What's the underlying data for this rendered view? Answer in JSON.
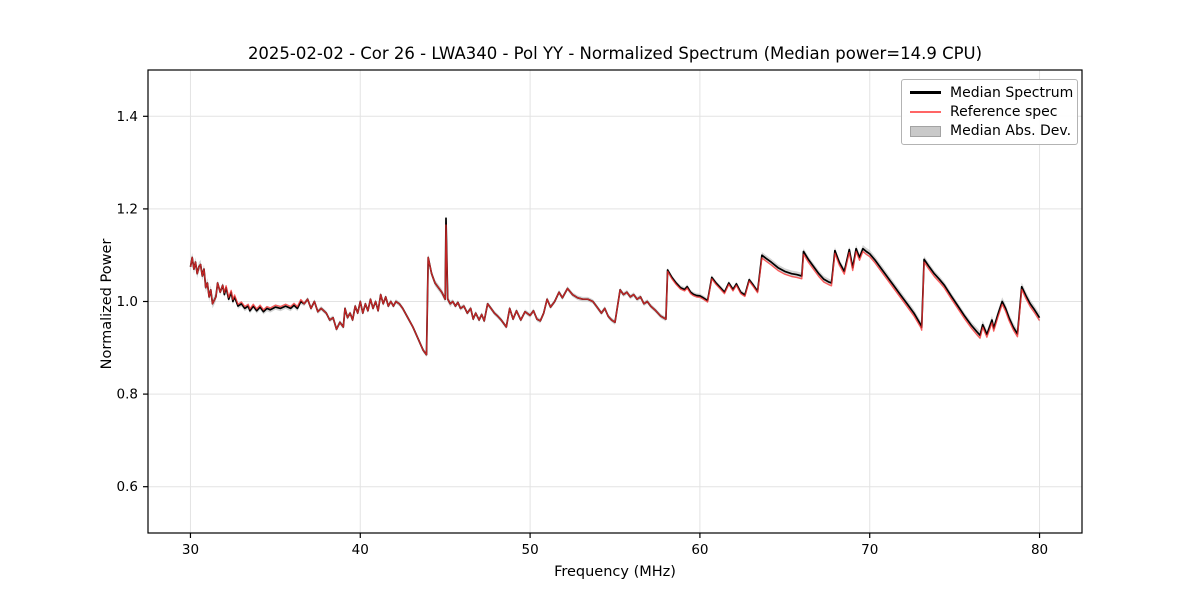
{
  "chart_data": {
    "type": "line",
    "title": "2025-02-02 - Cor 26 - LWA340 - Pol YY - Normalized Spectrum (Median power=14.9 CPU)",
    "xlabel": "Frequency (MHz)",
    "ylabel": "Normalized Power",
    "xlim": [
      27.5,
      82.5
    ],
    "ylim": [
      0.5,
      1.5
    ],
    "xticks": [
      30,
      40,
      50,
      60,
      70,
      80
    ],
    "yticks": [
      0.6,
      0.8,
      1.0,
      1.2,
      1.4
    ],
    "grid": true,
    "legend_position": "upper right",
    "colors": {
      "grid": "#e3e3e3",
      "spine": "#000000",
      "median": "#000000",
      "reference": "#ff3232",
      "band": "#b0b0b0"
    },
    "legend": [
      {
        "label": "Median Spectrum",
        "swatch": "line",
        "color": "#000000",
        "opacity": 1
      },
      {
        "label": "Reference spec",
        "swatch": "line",
        "color": "#ff3232",
        "opacity": 0.75
      },
      {
        "label": "Median Abs. Dev.",
        "swatch": "patch",
        "color": "#c9c9c9",
        "opacity": 1
      }
    ],
    "series_names": {
      "median": "Median Spectrum",
      "reference": "Reference spec",
      "band": "Median Abs. Dev."
    },
    "points_format": [
      "frequency_mhz",
      "median_spectrum",
      "reference_spec"
    ],
    "points": [
      [
        30,
        1.075,
        1.075
      ],
      [
        30.1,
        1.095,
        1.095
      ],
      [
        30.2,
        1.07,
        1.07
      ],
      [
        30.3,
        1.085,
        1.085
      ],
      [
        30.4,
        1.06,
        1.06
      ],
      [
        30.5,
        1.075,
        1.075
      ],
      [
        30.6,
        1.08,
        1.08
      ],
      [
        30.7,
        1.055,
        1.055
      ],
      [
        30.8,
        1.07,
        1.07
      ],
      [
        30.9,
        1.03,
        1.03
      ],
      [
        31,
        1.04,
        1.04
      ],
      [
        31.1,
        1.01,
        1.01
      ],
      [
        31.2,
        1.025,
        1.025
      ],
      [
        31.3,
        0.995,
        0.995
      ],
      [
        31.5,
        1.01,
        1.01
      ],
      [
        31.6,
        1.04,
        1.04
      ],
      [
        31.75,
        1.02,
        1.02
      ],
      [
        31.9,
        1.035,
        1.035
      ],
      [
        32,
        1.015,
        1.019
      ],
      [
        32.1,
        1.03,
        1.034
      ],
      [
        32.25,
        1.005,
        1.009
      ],
      [
        32.4,
        1.02,
        1.024
      ],
      [
        32.5,
        1,
        1.004
      ],
      [
        32.6,
        1.01,
        1.014
      ],
      [
        32.8,
        0.99,
        0.994
      ],
      [
        33,
        0.995,
        0.999
      ],
      [
        33.2,
        0.985,
        0.989
      ],
      [
        33.4,
        0.99,
        0.994
      ],
      [
        33.5,
        0.98,
        0.984
      ],
      [
        33.7,
        0.99,
        0.994
      ],
      [
        33.9,
        0.98,
        0.984
      ],
      [
        34.1,
        0.988,
        0.992
      ],
      [
        34.3,
        0.978,
        0.982
      ],
      [
        34.5,
        0.985,
        0.989
      ],
      [
        34.7,
        0.982,
        0.986
      ],
      [
        35,
        0.988,
        0.992
      ],
      [
        35.3,
        0.985,
        0.989
      ],
      [
        35.6,
        0.99,
        0.994
      ],
      [
        35.9,
        0.985,
        0.989
      ],
      [
        36.1,
        0.992,
        0.996
      ],
      [
        36.3,
        0.985,
        0.989
      ],
      [
        36.5,
        1,
        1.004
      ],
      [
        36.7,
        0.995,
        0.995
      ],
      [
        36.9,
        1.005,
        1.005
      ],
      [
        37.1,
        0.985,
        0.985
      ],
      [
        37.3,
        1,
        1
      ],
      [
        37.5,
        0.978,
        0.978
      ],
      [
        37.7,
        0.985,
        0.985
      ],
      [
        38,
        0.975,
        0.975
      ],
      [
        38.2,
        0.96,
        0.96
      ],
      [
        38.4,
        0.965,
        0.965
      ],
      [
        38.6,
        0.94,
        0.94
      ],
      [
        38.8,
        0.955,
        0.955
      ],
      [
        39,
        0.945,
        0.945
      ],
      [
        39.1,
        0.985,
        0.985
      ],
      [
        39.25,
        0.965,
        0.965
      ],
      [
        39.4,
        0.975,
        0.975
      ],
      [
        39.55,
        0.96,
        0.96
      ],
      [
        39.7,
        0.99,
        0.99
      ],
      [
        39.85,
        0.975,
        0.975
      ],
      [
        40,
        1,
        1
      ],
      [
        40.15,
        0.975,
        0.975
      ],
      [
        40.3,
        0.995,
        0.995
      ],
      [
        40.45,
        0.98,
        0.98
      ],
      [
        40.6,
        1.005,
        1.005
      ],
      [
        40.75,
        0.985,
        0.985
      ],
      [
        40.9,
        1,
        1
      ],
      [
        41.05,
        0.98,
        0.98
      ],
      [
        41.2,
        1.015,
        1.015
      ],
      [
        41.35,
        0.995,
        0.995
      ],
      [
        41.5,
        1.01,
        1.01
      ],
      [
        41.65,
        0.99,
        0.99
      ],
      [
        41.8,
        1,
        1
      ],
      [
        41.95,
        0.99,
        0.99
      ],
      [
        42.1,
        1,
        1
      ],
      [
        42.3,
        0.995,
        0.995
      ],
      [
        42.5,
        0.985,
        0.985
      ],
      [
        42.8,
        0.965,
        0.965
      ],
      [
        43.1,
        0.945,
        0.945
      ],
      [
        43.4,
        0.92,
        0.92
      ],
      [
        43.7,
        0.895,
        0.895
      ],
      [
        43.9,
        0.885,
        0.885
      ],
      [
        44,
        1.095,
        1.095
      ],
      [
        44.2,
        1.06,
        1.06
      ],
      [
        44.4,
        1.04,
        1.04
      ],
      [
        44.6,
        1.03,
        1.03
      ],
      [
        44.8,
        1.02,
        1.02
      ],
      [
        45,
        1.005,
        1.005
      ],
      [
        45.05,
        1.18,
        1.165
      ],
      [
        45.15,
        1.005,
        1.005
      ],
      [
        45.3,
        0.995,
        0.995
      ],
      [
        45.45,
        1,
        1
      ],
      [
        45.6,
        0.99,
        0.99
      ],
      [
        45.75,
        0.998,
        0.998
      ],
      [
        45.9,
        0.985,
        0.985
      ],
      [
        46.1,
        0.99,
        0.99
      ],
      [
        46.3,
        0.975,
        0.975
      ],
      [
        46.5,
        0.985,
        0.985
      ],
      [
        46.65,
        0.962,
        0.962
      ],
      [
        46.8,
        0.975,
        0.975
      ],
      [
        47,
        0.96,
        0.96
      ],
      [
        47.15,
        0.972,
        0.972
      ],
      [
        47.3,
        0.958,
        0.958
      ],
      [
        47.5,
        0.995,
        0.995
      ],
      [
        47.7,
        0.985,
        0.985
      ],
      [
        47.9,
        0.975,
        0.975
      ],
      [
        48.1,
        0.968,
        0.968
      ],
      [
        48.3,
        0.96,
        0.96
      ],
      [
        48.6,
        0.945,
        0.945
      ],
      [
        48.8,
        0.985,
        0.985
      ],
      [
        49,
        0.962,
        0.962
      ],
      [
        49.2,
        0.98,
        0.98
      ],
      [
        49.45,
        0.96,
        0.96
      ],
      [
        49.7,
        0.978,
        0.978
      ],
      [
        50,
        0.97,
        0.97
      ],
      [
        50.2,
        0.98,
        0.98
      ],
      [
        50.4,
        0.962,
        0.962
      ],
      [
        50.6,
        0.958,
        0.958
      ],
      [
        50.8,
        0.975,
        0.975
      ],
      [
        51,
        1.005,
        1.005
      ],
      [
        51.2,
        0.988,
        0.988
      ],
      [
        51.45,
        1,
        1
      ],
      [
        51.7,
        1.02,
        1.02
      ],
      [
        51.9,
        1.008,
        1.008
      ],
      [
        52.2,
        1.028,
        1.028
      ],
      [
        52.5,
        1.015,
        1.015
      ],
      [
        52.8,
        1.008,
        1.008
      ],
      [
        53.1,
        1.005,
        1.005
      ],
      [
        53.4,
        1.005,
        1.005
      ],
      [
        53.7,
        1,
        1
      ],
      [
        54,
        0.985,
        0.985
      ],
      [
        54.2,
        0.975,
        0.975
      ],
      [
        54.4,
        0.985,
        0.985
      ],
      [
        54.6,
        0.968,
        0.968
      ],
      [
        54.8,
        0.96,
        0.96
      ],
      [
        55,
        0.955,
        0.955
      ],
      [
        55.3,
        1.025,
        1.025
      ],
      [
        55.5,
        1.015,
        1.015
      ],
      [
        55.7,
        1.02,
        1.02
      ],
      [
        55.9,
        1.01,
        1.01
      ],
      [
        56.1,
        1.015,
        1.015
      ],
      [
        56.3,
        1.005,
        1.005
      ],
      [
        56.5,
        1.01,
        1.01
      ],
      [
        56.7,
        0.995,
        0.995
      ],
      [
        56.9,
        1,
        1
      ],
      [
        57.1,
        0.99,
        0.99
      ],
      [
        57.4,
        0.98,
        0.98
      ],
      [
        57.7,
        0.968,
        0.968
      ],
      [
        58,
        0.962,
        0.962
      ],
      [
        58.1,
        1.068,
        1.065
      ],
      [
        58.35,
        1.052,
        1.049
      ],
      [
        58.6,
        1.04,
        1.037
      ],
      [
        58.85,
        1.03,
        1.027
      ],
      [
        59.1,
        1.026,
        1.023
      ],
      [
        59.25,
        1.032,
        1.029
      ],
      [
        59.45,
        1.02,
        1.017
      ],
      [
        59.6,
        1.016,
        1.013
      ],
      [
        59.8,
        1.013,
        1.01
      ],
      [
        60,
        1.012,
        1.009
      ],
      [
        60.2,
        1.008,
        1.005
      ],
      [
        60.45,
        1.002,
        0.999
      ],
      [
        60.7,
        1.052,
        1.049
      ],
      [
        60.95,
        1.04,
        1.037
      ],
      [
        61.2,
        1.03,
        1.027
      ],
      [
        61.45,
        1.02,
        1.017
      ],
      [
        61.7,
        1.04,
        1.037
      ],
      [
        61.95,
        1.026,
        1.023
      ],
      [
        62.15,
        1.038,
        1.035
      ],
      [
        62.4,
        1.02,
        1.017
      ],
      [
        62.65,
        1.014,
        1.011
      ],
      [
        62.9,
        1.047,
        1.044
      ],
      [
        63.15,
        1.035,
        1.032
      ],
      [
        63.4,
        1.022,
        1.019
      ],
      [
        63.65,
        1.1,
        1.094
      ],
      [
        63.9,
        1.093,
        1.087
      ],
      [
        64.2,
        1.085,
        1.079
      ],
      [
        64.6,
        1.073,
        1.067
      ],
      [
        65,
        1.065,
        1.059
      ],
      [
        65.4,
        1.06,
        1.054
      ],
      [
        65.7,
        1.058,
        1.052
      ],
      [
        66,
        1.055,
        1.049
      ],
      [
        66.1,
        1.108,
        1.102
      ],
      [
        66.4,
        1.09,
        1.084
      ],
      [
        66.7,
        1.075,
        1.069
      ],
      [
        67,
        1.06,
        1.054
      ],
      [
        67.3,
        1.048,
        1.042
      ],
      [
        67.6,
        1.042,
        1.036
      ],
      [
        67.75,
        1.04,
        1.034
      ],
      [
        67.95,
        1.11,
        1.104
      ],
      [
        68.2,
        1.085,
        1.079
      ],
      [
        68.5,
        1.065,
        1.059
      ],
      [
        68.8,
        1.112,
        1.106
      ],
      [
        69,
        1.073,
        1.067
      ],
      [
        69.2,
        1.114,
        1.108
      ],
      [
        69.4,
        1.095,
        1.089
      ],
      [
        69.6,
        1.114,
        1.108
      ],
      [
        69.8,
        1.108,
        1.102
      ],
      [
        70,
        1.103,
        1.097
      ],
      [
        70.3,
        1.09,
        1.084
      ],
      [
        70.6,
        1.075,
        1.069
      ],
      [
        71,
        1.055,
        1.049
      ],
      [
        71.4,
        1.035,
        1.029
      ],
      [
        71.8,
        1.015,
        1.009
      ],
      [
        72.2,
        0.995,
        0.989
      ],
      [
        72.6,
        0.975,
        0.969
      ],
      [
        73,
        0.95,
        0.944
      ],
      [
        73.06,
        0.944,
        0.938
      ],
      [
        73.2,
        1.091,
        1.085
      ],
      [
        73.5,
        1.075,
        1.069
      ],
      [
        73.8,
        1.06,
        1.054
      ],
      [
        74.1,
        1.048,
        1.042
      ],
      [
        74.4,
        1.035,
        1.029
      ],
      [
        74.8,
        1.012,
        1.006
      ],
      [
        75.2,
        0.99,
        0.984
      ],
      [
        75.6,
        0.968,
        0.962
      ],
      [
        76,
        0.948,
        0.942
      ],
      [
        76.3,
        0.935,
        0.929
      ],
      [
        76.5,
        0.927,
        0.921
      ],
      [
        76.65,
        0.95,
        0.944
      ],
      [
        76.9,
        0.929,
        0.923
      ],
      [
        77.2,
        0.96,
        0.954
      ],
      [
        77.3,
        0.942,
        0.936
      ],
      [
        77.55,
        0.972,
        0.966
      ],
      [
        77.8,
        1,
        0.994
      ],
      [
        78,
        0.985,
        0.979
      ],
      [
        78.2,
        0.965,
        0.959
      ],
      [
        78.45,
        0.945,
        0.939
      ],
      [
        78.7,
        0.93,
        0.924
      ],
      [
        78.95,
        1.032,
        1.026
      ],
      [
        79.2,
        1.012,
        1.006
      ],
      [
        79.45,
        0.995,
        0.989
      ],
      [
        79.7,
        0.982,
        0.976
      ],
      [
        80,
        0.965,
        0.959
      ]
    ],
    "mad_segments_format": [
      "x_start",
      "x_end",
      "half_width"
    ],
    "mad_segments": [
      [
        30,
        31.5,
        0.01
      ],
      [
        31.5,
        36.5,
        0.006
      ],
      [
        36.5,
        43.9,
        0.005
      ],
      [
        43.9,
        45.3,
        0.007
      ],
      [
        45.3,
        58,
        0.005
      ],
      [
        58,
        63.4,
        0.005
      ],
      [
        63.4,
        69,
        0.007
      ],
      [
        69,
        73.1,
        0.008
      ],
      [
        73.1,
        76,
        0.007
      ],
      [
        76,
        80,
        0.009
      ]
    ]
  }
}
